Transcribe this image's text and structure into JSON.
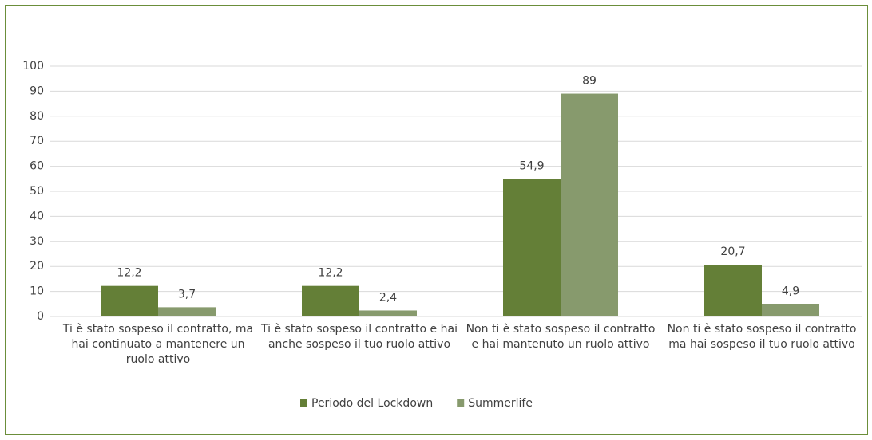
{
  "chart_data": {
    "type": "bar",
    "categories": [
      "Ti è stato sospeso il contratto, ma hai continuato a mantenere un ruolo attivo",
      "Ti è stato sospeso il contratto e hai anche sospeso il tuo ruolo attivo",
      "Non ti è stato sospeso il contratto e hai mantenuto un ruolo attivo",
      "Non ti è stato sospeso il contratto ma hai sospeso il tuo ruolo attivo"
    ],
    "series": [
      {
        "name": "Periodo del Lockdown",
        "color": "#647f37",
        "values": [
          12.2,
          12.2,
          54.9,
          20.7
        ],
        "value_labels": [
          "12,2",
          "12,2",
          "54,9",
          "20,7"
        ]
      },
      {
        "name": "Summerlife",
        "color": "#879a6d",
        "values": [
          3.7,
          2.4,
          89,
          4.9
        ],
        "value_labels": [
          "3,7",
          "2,4",
          "89",
          "4,9"
        ]
      }
    ],
    "ylim": [
      0,
      100
    ],
    "yticks": [
      0,
      10,
      20,
      30,
      40,
      50,
      60,
      70,
      80,
      90,
      100
    ],
    "grid": true,
    "legend": "bottom"
  }
}
